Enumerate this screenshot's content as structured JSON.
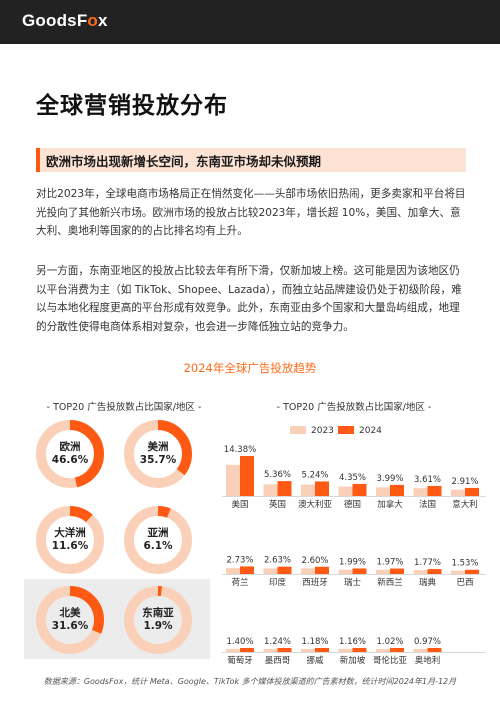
{
  "header": {
    "logo_main": "GoodsF",
    "logo_accent": "o",
    "logo_tail": "x"
  },
  "page_title": "全球营销投放分布",
  "subtitle": "欧洲市场出现新增长空间，东南亚市场却未似预期",
  "paragraphs": [
    "对比2023年，全球电商市场格局正在悄然变化——头部市场依旧热闹，更多卖家和平台将目光投向了其他新兴市场。欧洲市场的投放占比较2023年，增长超 10%，美国、加拿大、意大利、奥地利等国家的的占比排名均有上升。",
    "另一方面，东南亚地区的投放占比较去年有所下滑，仅新加坡上榜。这可能是因为该地区仍以平台消费为主（如 TikTok、Shopee、Lazada），而独立站品牌建设仍处于初级阶段，难以与本地化程度更高的平台形成有效竞争。此外，东南亚由多个国家和大量岛屿组成，地理的分散性使得电商体系相对复杂，也会进一步降低独立站的竞争力。"
  ],
  "section_title": "2024年全球广告投放趋势",
  "left_caption": "- TOP20 广告投放数占比国家/地区 -",
  "right_caption": "- TOP20 广告投放数占比国家/地区 -",
  "colors": {
    "accent": "#ff5a14",
    "light": "#fbd0b8",
    "ring_bg": "#ffffff"
  },
  "regions": [
    {
      "name": "欧洲",
      "pct": "46.6%",
      "value": 46.6
    },
    {
      "name": "美洲",
      "pct": "35.7%",
      "value": 35.7
    },
    {
      "name": "大洋洲",
      "pct": "11.6%",
      "value": 11.6
    },
    {
      "name": "亚洲",
      "pct": "6.1%",
      "value": 6.1
    },
    {
      "name": "北美",
      "pct": "31.6%",
      "value": 31.6
    },
    {
      "name": "东南亚",
      "pct": "1.9%",
      "value": 1.9
    }
  ],
  "chart_data": {
    "type": "bar",
    "legend": [
      "2023",
      "2024"
    ],
    "rows": [
      {
        "categories": [
          "美国",
          "英国",
          "澳大利亚",
          "德国",
          "加拿大",
          "法国",
          "意大利"
        ],
        "values_2024": [
          14.38,
          5.36,
          5.24,
          4.35,
          3.99,
          3.61,
          2.91
        ],
        "labels": [
          "14.38%",
          "5.36%",
          "5.24%",
          "4.35%",
          "3.99%",
          "3.61%",
          "2.91%"
        ]
      },
      {
        "categories": [
          "荷兰",
          "印度",
          "西班牙",
          "瑞士",
          "新西兰",
          "瑞典",
          "巴西"
        ],
        "values_2024": [
          2.73,
          2.63,
          2.6,
          1.99,
          1.97,
          1.77,
          1.53
        ],
        "labels": [
          "2.73%",
          "2.63%",
          "2.60%",
          "1.99%",
          "1.97%",
          "1.77%",
          "1.53%"
        ]
      },
      {
        "categories": [
          "葡萄牙",
          "墨西哥",
          "挪威",
          "新加坡",
          "哥伦比亚",
          "奥地利"
        ],
        "values_2024": [
          1.4,
          1.24,
          1.18,
          1.16,
          1.02,
          0.97
        ],
        "labels": [
          "1.40%",
          "1.24%",
          "1.18%",
          "1.16%",
          "1.02%",
          "0.97%"
        ]
      }
    ]
  },
  "source_note": "数据来源：GoodsFox，统计 Meta、Google、TikTok 多个媒体投放渠道的广告素材数，统计时间2024年1月-12月"
}
